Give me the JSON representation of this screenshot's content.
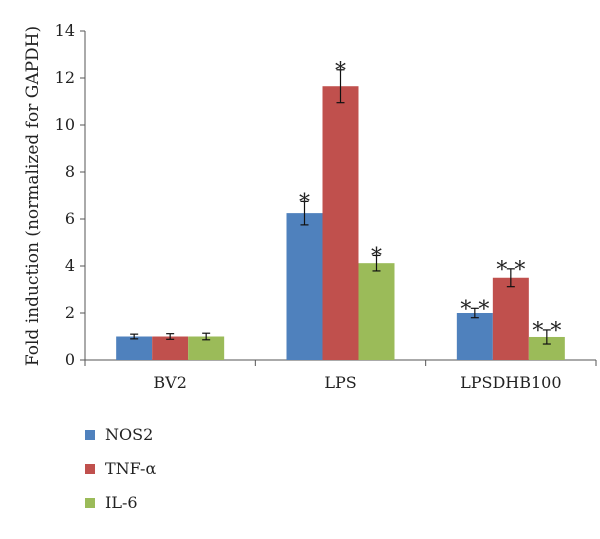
{
  "chart_data": {
    "type": "bar",
    "ylabel": "Fold induction (normalized for GAPDH)",
    "xlabel": "",
    "ylim": [
      0,
      14
    ],
    "yticks": [
      0,
      2,
      4,
      6,
      8,
      10,
      12,
      14
    ],
    "categories": [
      "BV2",
      "LPS",
      "LPSDHB100"
    ],
    "grid": false,
    "legend_position": "bottom-left",
    "series": [
      {
        "name": "NOS2",
        "color": "#4f81bd",
        "values": [
          1.0,
          6.25,
          2.0
        ],
        "errors": [
          0.1,
          0.5,
          0.2
        ],
        "annotations": [
          "",
          "*",
          "**"
        ]
      },
      {
        "name": "TNF-α",
        "color": "#c0504d",
        "values": [
          1.0,
          11.65,
          3.5
        ],
        "errors": [
          0.12,
          0.7,
          0.38
        ],
        "annotations": [
          "",
          "*",
          "**"
        ]
      },
      {
        "name": "IL-6",
        "color": "#9bbb59",
        "values": [
          1.0,
          4.12,
          0.98
        ],
        "errors": [
          0.14,
          0.33,
          0.3
        ],
        "annotations": [
          "",
          "*",
          "**"
        ]
      }
    ]
  }
}
